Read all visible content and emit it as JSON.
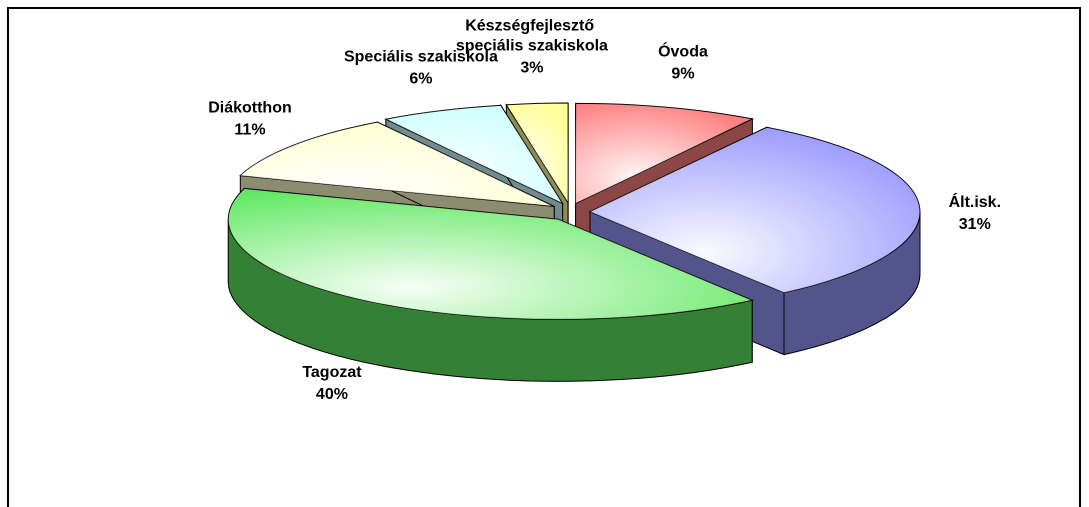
{
  "chart_data": {
    "type": "pie3d",
    "categories": [
      "Óvoda",
      "Ált.isk.",
      "Tagozat",
      "Diákotthon",
      "Speciális szakiskola",
      "Készségfejlesztő speciális szakiskola"
    ],
    "values": [
      9,
      31,
      40,
      11,
      6,
      3
    ],
    "value_labels": [
      "9%",
      "31%",
      "40%",
      "11%",
      "6%",
      "3%"
    ],
    "colors": [
      "#ff8080",
      "#9999ff",
      "#5ee85e",
      "#ffffcc",
      "#ccffff",
      "#ffff99"
    ]
  }
}
